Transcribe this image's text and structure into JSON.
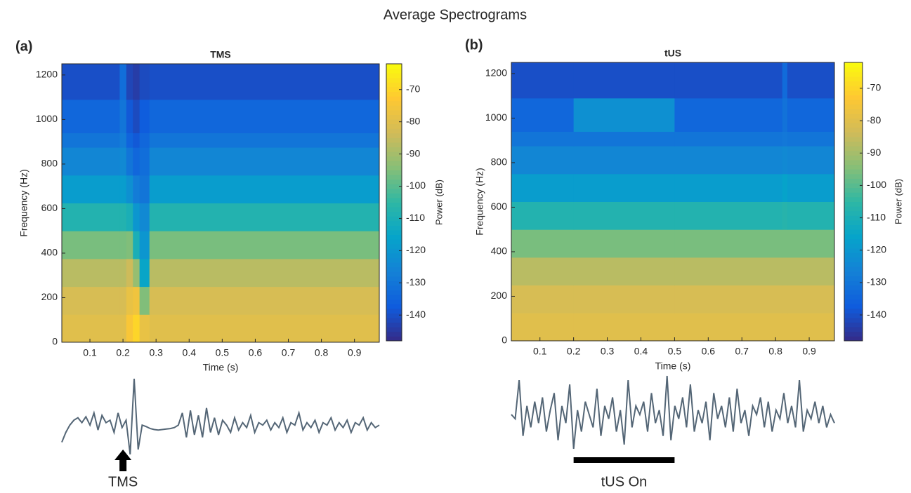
{
  "title": "Average Spectrograms",
  "chart_data": [
    {
      "type": "heatmap",
      "panel": "(a)",
      "title": "TMS",
      "x_label": "Time (s)",
      "y_label": "Frequency (Hz)",
      "colorbar_label": "Power (dB)",
      "x_edges": [
        0.015,
        0.19,
        0.21,
        0.23,
        0.25,
        0.28,
        0.975
      ],
      "y_edges": [
        0,
        125,
        250,
        375,
        500,
        625,
        750,
        875,
        940,
        1090,
        1250
      ],
      "z": [
        [
          -80,
          -80,
          -74,
          -70,
          -78,
          -80
        ],
        [
          -82,
          -82,
          -78,
          -76,
          -95,
          -82
        ],
        [
          -87,
          -87,
          -84,
          -92,
          -115,
          -87
        ],
        [
          -96,
          -96,
          -95,
          -110,
          -120,
          -96
        ],
        [
          -108,
          -108,
          -110,
          -120,
          -124,
          -108
        ],
        [
          -118,
          -118,
          -122,
          -128,
          -130,
          -118
        ],
        [
          -125,
          -124,
          -130,
          -134,
          -132,
          -125
        ],
        [
          -130,
          -128,
          -135,
          -138,
          -134,
          -130
        ],
        [
          -134,
          -130,
          -138,
          -141,
          -137,
          -134
        ],
        [
          -140,
          -132,
          -142,
          -144,
          -141,
          -140
        ]
      ],
      "xlim": [
        0.015,
        0.975
      ],
      "ylim": [
        0,
        1250
      ],
      "xticks": [
        0.1,
        0.2,
        0.3,
        0.4,
        0.5,
        0.6,
        0.7,
        0.8,
        0.9
      ],
      "yticks": [
        0,
        200,
        400,
        600,
        800,
        1000,
        1200
      ],
      "clim": [
        -148,
        -62
      ],
      "cticks": [
        -70,
        -80,
        -90,
        -100,
        -110,
        -120,
        -130,
        -140
      ],
      "colormap": [
        "#352a87",
        "#0f5cdd",
        "#1481d6",
        "#06a4ca",
        "#2eb7a4",
        "#87bf77",
        "#d1bb59",
        "#fec832",
        "#f9fb0e"
      ]
    },
    {
      "type": "heatmap",
      "panel": "(b)",
      "title": "tUS",
      "x_label": "Time (s)",
      "y_label": "Frequency (Hz)",
      "colorbar_label": "Power (dB)",
      "x_edges": [
        0.015,
        0.2,
        0.5,
        0.82,
        0.835,
        0.975
      ],
      "y_edges": [
        0,
        125,
        250,
        375,
        500,
        625,
        750,
        875,
        940,
        1090,
        1250
      ],
      "z": [
        [
          -80,
          -80,
          -80,
          -80,
          -80
        ],
        [
          -82,
          -82,
          -82,
          -82,
          -82
        ],
        [
          -87,
          -87,
          -87,
          -87,
          -87
        ],
        [
          -96,
          -96,
          -96,
          -96,
          -96
        ],
        [
          -108,
          -108,
          -108,
          -107,
          -108
        ],
        [
          -118,
          -118,
          -118,
          -116,
          -118
        ],
        [
          -125,
          -125,
          -125,
          -124,
          -125
        ],
        [
          -130,
          -130,
          -130,
          -129,
          -130
        ],
        [
          -134,
          -122,
          -134,
          -131,
          -134
        ],
        [
          -140,
          -140,
          -140,
          -133,
          -140
        ]
      ],
      "xlim": [
        0.015,
        0.975
      ],
      "ylim": [
        0,
        1250
      ],
      "xticks": [
        0.1,
        0.2,
        0.3,
        0.4,
        0.5,
        0.6,
        0.7,
        0.8,
        0.9
      ],
      "yticks": [
        0,
        200,
        400,
        600,
        800,
        1000,
        1200
      ],
      "clim": [
        -148,
        -62
      ],
      "cticks": [
        -70,
        -80,
        -90,
        -100,
        -110,
        -120,
        -130,
        -140
      ],
      "colormap": [
        "#352a87",
        "#0f5cdd",
        "#1481d6",
        "#06a4ca",
        "#2eb7a4",
        "#87bf77",
        "#d1bb59",
        "#fec832",
        "#f9fb0e"
      ]
    },
    {
      "type": "line",
      "color": "#546676",
      "annotation": "TMS",
      "arrow_x": 0.2,
      "values": [
        -0.3,
        -0.1,
        0.05,
        0.15,
        0.2,
        0.1,
        0.22,
        0.05,
        0.3,
        -0.05,
        0.25,
        0.1,
        0.15,
        -0.1,
        0.3,
        0.0,
        0.15,
        -0.55,
        1.0,
        -0.45,
        0.05,
        0.02,
        -0.02,
        -0.04,
        -0.05,
        -0.04,
        -0.03,
        -0.02,
        0.0,
        0.05,
        0.3,
        -0.2,
        0.35,
        -0.15,
        0.25,
        -0.2,
        0.4,
        -0.1,
        0.2,
        -0.15,
        0.15,
        0.05,
        -0.1,
        0.2,
        -0.05,
        0.1,
        0.0,
        0.25,
        -0.1,
        0.1,
        0.05,
        0.15,
        -0.05,
        0.1,
        0.0,
        0.2,
        -0.1,
        0.1,
        0.05,
        0.3,
        -0.05,
        0.1,
        0.0,
        0.15,
        -0.1,
        0.1,
        0.05,
        0.2,
        -0.05,
        0.1,
        0.0,
        0.15,
        -0.1,
        0.1,
        0.05,
        0.2,
        -0.05,
        0.1,
        0.0,
        0.05
      ]
    },
    {
      "type": "line",
      "color": "#546676",
      "annotation": "tUS On",
      "bar_x": [
        0.2,
        0.5
      ],
      "values": [
        0.1,
        0.0,
        0.9,
        -0.4,
        0.3,
        -0.2,
        0.4,
        -0.1,
        0.5,
        -0.3,
        0.2,
        0.6,
        -0.5,
        0.3,
        -0.1,
        0.8,
        -0.7,
        0.2,
        -0.3,
        0.4,
        0.1,
        -0.2,
        0.7,
        -0.4,
        0.3,
        0.0,
        0.5,
        -0.3,
        0.2,
        -0.6,
        0.9,
        -0.2,
        0.3,
        0.1,
        0.4,
        -0.3,
        0.6,
        -0.1,
        0.2,
        -0.4,
        1.0,
        -0.5,
        0.3,
        0.0,
        0.5,
        -0.2,
        0.8,
        -0.3,
        0.2,
        -0.1,
        0.4,
        -0.5,
        0.6,
        0.0,
        0.3,
        -0.2,
        0.5,
        -0.3,
        0.7,
        -0.1,
        0.2,
        -0.4,
        0.3,
        0.1,
        0.5,
        -0.2,
        0.4,
        -0.3,
        0.2,
        0.0,
        0.6,
        -0.1,
        0.3,
        -0.2,
        0.9,
        -0.3,
        0.2,
        0.0,
        0.4,
        -0.1,
        0.3,
        -0.2,
        0.1,
        -0.1
      ]
    }
  ]
}
